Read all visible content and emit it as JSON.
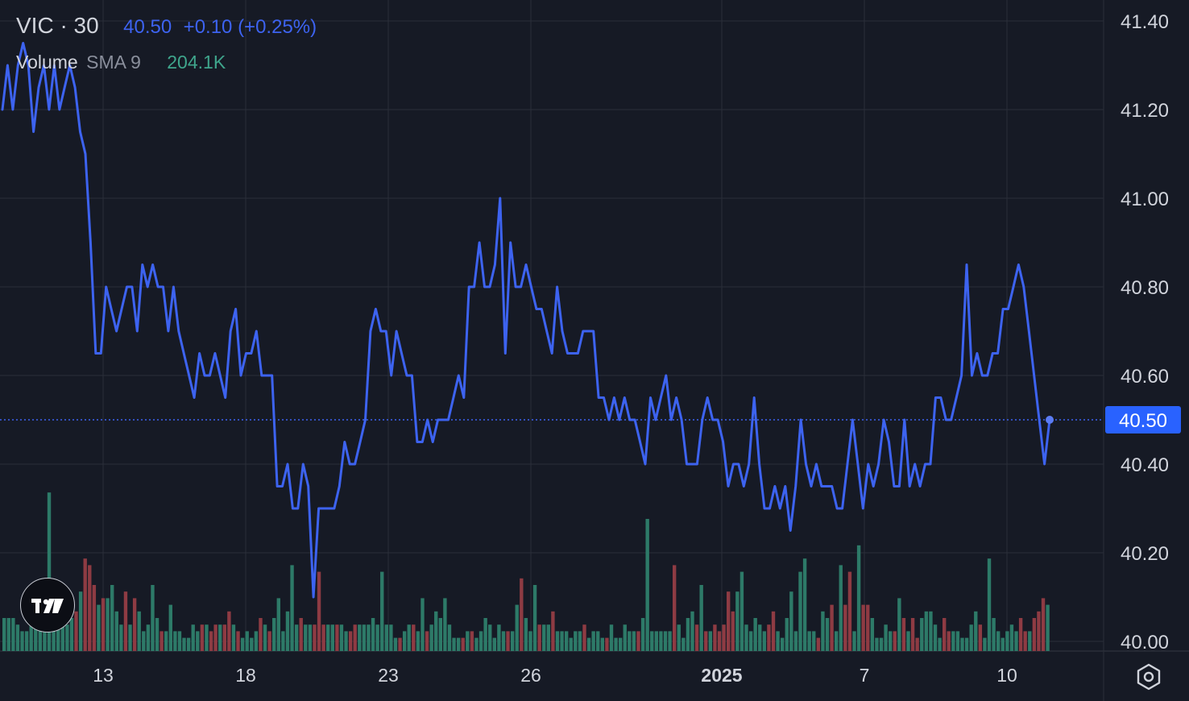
{
  "legend": {
    "symbol": "VIC · 30",
    "last": "40.50",
    "change": "+0.10 (+0.25%)"
  },
  "volume": {
    "name": "Volume",
    "sma": "SMA 9",
    "value": "204.1K"
  },
  "colors": {
    "background": "#161a25",
    "line": "#3d63f0",
    "up": "#2d7a68",
    "down": "#8e3b43",
    "price_badge": "#2962ff",
    "grid": "#2a2e39",
    "axis_text": "#d1d4dc"
  },
  "icons": {
    "logo": "tradingview-logo-icon",
    "settings": "gear-icon"
  },
  "chart_data": {
    "type": "line",
    "x_ticks": [
      "13",
      "18",
      "23",
      "26",
      "2025",
      "7",
      "10"
    ],
    "y_ticks": [
      "41.40",
      "41.20",
      "41.00",
      "40.80",
      "40.60",
      "40.40",
      "40.20",
      "40.00"
    ],
    "ylim": [
      40.0,
      41.4
    ],
    "current_price_label": "40.50",
    "price_series": [
      41.2,
      41.3,
      41.2,
      41.3,
      41.35,
      41.3,
      41.15,
      41.25,
      41.3,
      41.2,
      41.3,
      41.2,
      41.25,
      41.3,
      41.25,
      41.15,
      41.1,
      40.9,
      40.65,
      40.65,
      40.8,
      40.75,
      40.7,
      40.75,
      40.8,
      40.8,
      40.7,
      40.85,
      40.8,
      40.85,
      40.8,
      40.8,
      40.7,
      40.8,
      40.7,
      40.65,
      40.6,
      40.55,
      40.65,
      40.6,
      40.6,
      40.65,
      40.6,
      40.55,
      40.7,
      40.75,
      40.6,
      40.65,
      40.65,
      40.7,
      40.6,
      40.6,
      40.6,
      40.35,
      40.35,
      40.4,
      40.3,
      40.3,
      40.4,
      40.35,
      40.1,
      40.3,
      40.3,
      40.3,
      40.3,
      40.35,
      40.45,
      40.4,
      40.4,
      40.45,
      40.5,
      40.7,
      40.75,
      40.7,
      40.7,
      40.6,
      40.7,
      40.65,
      40.6,
      40.6,
      40.45,
      40.45,
      40.5,
      40.45,
      40.5,
      40.5,
      40.5,
      40.55,
      40.6,
      40.55,
      40.8,
      40.8,
      40.9,
      40.8,
      40.8,
      40.85,
      41.0,
      40.65,
      40.9,
      40.8,
      40.8,
      40.85,
      40.8,
      40.75,
      40.75,
      40.7,
      40.65,
      40.8,
      40.7,
      40.65,
      40.65,
      40.65,
      40.7,
      40.7,
      40.7,
      40.55,
      40.55,
      40.5,
      40.55,
      40.5,
      40.55,
      40.5,
      40.5,
      40.45,
      40.4,
      40.55,
      40.5,
      40.55,
      40.6,
      40.5,
      40.55,
      40.5,
      40.4,
      40.4,
      40.4,
      40.5,
      40.55,
      40.5,
      40.5,
      40.45,
      40.35,
      40.4,
      40.4,
      40.35,
      40.4,
      40.55,
      40.4,
      40.3,
      40.3,
      40.35,
      40.3,
      40.35,
      40.25,
      40.35,
      40.5,
      40.4,
      40.35,
      40.4,
      40.35,
      40.35,
      40.35,
      40.3,
      40.3,
      40.4,
      40.5,
      40.4,
      40.3,
      40.4,
      40.35,
      40.4,
      40.5,
      40.45,
      40.35,
      40.35,
      40.5,
      40.35,
      40.4,
      40.35,
      40.4,
      40.4,
      40.55,
      40.55,
      40.5,
      40.5,
      40.55,
      40.6,
      40.85,
      40.6,
      40.65,
      40.6,
      40.6,
      40.65,
      40.65,
      40.75,
      40.75,
      40.8,
      40.85,
      40.8,
      40.7,
      40.6,
      40.5,
      40.4,
      40.5
    ],
    "volume_bars": [
      [
        5,
        "u"
      ],
      [
        5,
        "u"
      ],
      [
        5,
        "u"
      ],
      [
        4,
        "u"
      ],
      [
        3,
        "u"
      ],
      [
        3,
        "u"
      ],
      [
        5,
        "u"
      ],
      [
        6,
        "u"
      ],
      [
        4,
        "u"
      ],
      [
        7,
        "u"
      ],
      [
        24,
        "u"
      ],
      [
        8,
        "u"
      ],
      [
        6,
        "u"
      ],
      [
        5,
        "u"
      ],
      [
        4,
        "u"
      ],
      [
        5,
        "u"
      ],
      [
        6,
        "d"
      ],
      [
        9,
        "u"
      ],
      [
        14,
        "d"
      ],
      [
        13,
        "d"
      ],
      [
        10,
        "d"
      ],
      [
        7,
        "u"
      ],
      [
        8,
        "d"
      ],
      [
        8,
        "u"
      ],
      [
        10,
        "u"
      ],
      [
        6,
        "u"
      ],
      [
        4,
        "u"
      ],
      [
        9,
        "d"
      ],
      [
        4,
        "u"
      ],
      [
        8,
        "d"
      ],
      [
        6,
        "u"
      ],
      [
        3,
        "u"
      ],
      [
        4,
        "u"
      ],
      [
        10,
        "u"
      ],
      [
        5,
        "u"
      ],
      [
        3,
        "d"
      ],
      [
        3,
        "u"
      ],
      [
        7,
        "u"
      ],
      [
        3,
        "u"
      ],
      [
        3,
        "u"
      ],
      [
        2,
        "u"
      ],
      [
        2,
        "u"
      ],
      [
        4,
        "u"
      ],
      [
        3,
        "u"
      ],
      [
        4,
        "d"
      ],
      [
        4,
        "u"
      ],
      [
        3,
        "d"
      ],
      [
        4,
        "d"
      ],
      [
        4,
        "u"
      ],
      [
        4,
        "d"
      ],
      [
        6,
        "d"
      ],
      [
        4,
        "u"
      ],
      [
        3,
        "d"
      ],
      [
        2,
        "u"
      ],
      [
        3,
        "u"
      ],
      [
        2,
        "u"
      ],
      [
        3,
        "u"
      ],
      [
        5,
        "d"
      ],
      [
        4,
        "u"
      ],
      [
        3,
        "d"
      ],
      [
        5,
        "u"
      ],
      [
        8,
        "u"
      ],
      [
        3,
        "u"
      ],
      [
        6,
        "u"
      ],
      [
        13,
        "u"
      ],
      [
        4,
        "u"
      ],
      [
        5,
        "d"
      ],
      [
        4,
        "u"
      ],
      [
        4,
        "u"
      ],
      [
        4,
        "d"
      ],
      [
        12,
        "d"
      ],
      [
        4,
        "d"
      ],
      [
        4,
        "u"
      ],
      [
        4,
        "u"
      ],
      [
        4,
        "d"
      ],
      [
        4,
        "u"
      ],
      [
        3,
        "u"
      ],
      [
        3,
        "d"
      ],
      [
        4,
        "d"
      ],
      [
        4,
        "u"
      ],
      [
        4,
        "u"
      ],
      [
        4,
        "u"
      ],
      [
        5,
        "u"
      ],
      [
        4,
        "u"
      ],
      [
        12,
        "u"
      ],
      [
        4,
        "u"
      ],
      [
        4,
        "u"
      ],
      [
        2,
        "u"
      ],
      [
        2,
        "d"
      ],
      [
        3,
        "u"
      ],
      [
        4,
        "u"
      ],
      [
        4,
        "d"
      ],
      [
        3,
        "u"
      ],
      [
        8,
        "u"
      ],
      [
        3,
        "d"
      ],
      [
        4,
        "u"
      ],
      [
        6,
        "u"
      ],
      [
        5,
        "u"
      ],
      [
        8,
        "u"
      ],
      [
        4,
        "u"
      ],
      [
        2,
        "u"
      ],
      [
        2,
        "u"
      ],
      [
        2,
        "d"
      ],
      [
        3,
        "u"
      ],
      [
        3,
        "d"
      ],
      [
        2,
        "u"
      ],
      [
        3,
        "u"
      ],
      [
        5,
        "u"
      ],
      [
        4,
        "u"
      ],
      [
        2,
        "u"
      ],
      [
        4,
        "u"
      ],
      [
        3,
        "u"
      ],
      [
        3,
        "d"
      ],
      [
        3,
        "u"
      ],
      [
        7,
        "u"
      ],
      [
        11,
        "d"
      ],
      [
        5,
        "u"
      ],
      [
        3,
        "u"
      ],
      [
        10,
        "u"
      ],
      [
        4,
        "d"
      ],
      [
        4,
        "u"
      ],
      [
        4,
        "u"
      ],
      [
        6,
        "d"
      ],
      [
        3,
        "u"
      ],
      [
        3,
        "u"
      ],
      [
        3,
        "u"
      ],
      [
        2,
        "u"
      ],
      [
        3,
        "u"
      ],
      [
        3,
        "u"
      ],
      [
        4,
        "d"
      ],
      [
        2,
        "u"
      ],
      [
        3,
        "u"
      ],
      [
        3,
        "u"
      ],
      [
        2,
        "u"
      ],
      [
        2,
        "d"
      ],
      [
        4,
        "u"
      ],
      [
        2,
        "u"
      ],
      [
        2,
        "u"
      ],
      [
        4,
        "u"
      ],
      [
        3,
        "u"
      ],
      [
        3,
        "u"
      ],
      [
        3,
        "d"
      ],
      [
        5,
        "u"
      ],
      [
        20,
        "u"
      ],
      [
        3,
        "u"
      ],
      [
        3,
        "u"
      ],
      [
        3,
        "u"
      ],
      [
        3,
        "u"
      ],
      [
        3,
        "u"
      ],
      [
        13,
        "d"
      ],
      [
        4,
        "u"
      ],
      [
        2,
        "u"
      ],
      [
        5,
        "u"
      ],
      [
        6,
        "u"
      ],
      [
        4,
        "d"
      ],
      [
        10,
        "u"
      ],
      [
        3,
        "d"
      ],
      [
        3,
        "u"
      ],
      [
        4,
        "d"
      ],
      [
        3,
        "d"
      ],
      [
        4,
        "d"
      ],
      [
        9,
        "d"
      ],
      [
        6,
        "d"
      ],
      [
        9,
        "u"
      ],
      [
        12,
        "u"
      ],
      [
        4,
        "u"
      ],
      [
        3,
        "u"
      ],
      [
        5,
        "u"
      ],
      [
        4,
        "u"
      ],
      [
        3,
        "u"
      ],
      [
        4,
        "d"
      ],
      [
        6,
        "d"
      ],
      [
        3,
        "u"
      ],
      [
        2,
        "u"
      ],
      [
        5,
        "u"
      ],
      [
        9,
        "u"
      ],
      [
        3,
        "u"
      ],
      [
        12,
        "u"
      ],
      [
        14,
        "u"
      ],
      [
        3,
        "u"
      ],
      [
        3,
        "u"
      ],
      [
        2,
        "d"
      ],
      [
        6,
        "u"
      ],
      [
        5,
        "u"
      ],
      [
        7,
        "d"
      ],
      [
        3,
        "u"
      ],
      [
        13,
        "u"
      ],
      [
        7,
        "d"
      ],
      [
        12,
        "d"
      ],
      [
        3,
        "u"
      ],
      [
        16,
        "u"
      ],
      [
        7,
        "d"
      ],
      [
        7,
        "d"
      ],
      [
        5,
        "u"
      ],
      [
        2,
        "u"
      ],
      [
        2,
        "u"
      ],
      [
        4,
        "u"
      ],
      [
        3,
        "u"
      ],
      [
        3,
        "d"
      ],
      [
        8,
        "u"
      ],
      [
        5,
        "d"
      ],
      [
        3,
        "u"
      ],
      [
        5,
        "d"
      ],
      [
        2,
        "d"
      ],
      [
        5,
        "u"
      ],
      [
        6,
        "u"
      ],
      [
        6,
        "u"
      ],
      [
        4,
        "u"
      ],
      [
        2,
        "u"
      ],
      [
        5,
        "d"
      ],
      [
        3,
        "d"
      ],
      [
        3,
        "u"
      ],
      [
        3,
        "u"
      ],
      [
        2,
        "u"
      ],
      [
        2,
        "u"
      ],
      [
        4,
        "u"
      ],
      [
        6,
        "u"
      ],
      [
        4,
        "d"
      ],
      [
        2,
        "u"
      ],
      [
        14,
        "u"
      ],
      [
        5,
        "u"
      ],
      [
        3,
        "u"
      ],
      [
        2,
        "u"
      ],
      [
        3,
        "u"
      ],
      [
        4,
        "u"
      ],
      [
        3,
        "u"
      ],
      [
        5,
        "d"
      ],
      [
        3,
        "d"
      ],
      [
        3,
        "u"
      ],
      [
        5,
        "d"
      ],
      [
        6,
        "d"
      ],
      [
        8,
        "d"
      ],
      [
        7,
        "u"
      ]
    ]
  }
}
